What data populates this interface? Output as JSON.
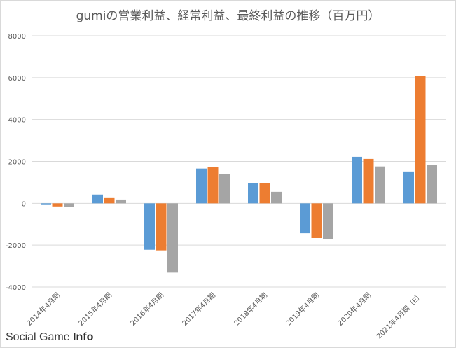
{
  "chart_data": {
    "type": "bar",
    "title": "gumiの営業利益、経常利益、最終利益の推移（百万円）",
    "categories": [
      "2014年4月期",
      "2015年4月期",
      "2016年4月期",
      "2017年4月期",
      "2018年4月期",
      "2019年4月期",
      "2020年4月期",
      "2021年4月期（E）"
    ],
    "series": [
      {
        "values": [
          -80,
          420,
          -2220,
          1660,
          980,
          -1430,
          2220,
          1520
        ]
      },
      {
        "values": [
          -150,
          250,
          -2250,
          1720,
          950,
          -1660,
          2120,
          6080
        ]
      },
      {
        "values": [
          -170,
          180,
          -3310,
          1390,
          550,
          -1700,
          1760,
          1820
        ]
      }
    ],
    "colors": [
      "#5b9bd5",
      "#ed7d31",
      "#a5a5a5"
    ],
    "ylim": [
      -4000,
      8000
    ],
    "yticks": [
      -4000,
      -2000,
      0,
      2000,
      4000,
      6000,
      8000
    ],
    "grid": true,
    "xlabel": "",
    "ylabel": ""
  },
  "watermark": {
    "text": "Social Game ",
    "accent": "Info"
  }
}
